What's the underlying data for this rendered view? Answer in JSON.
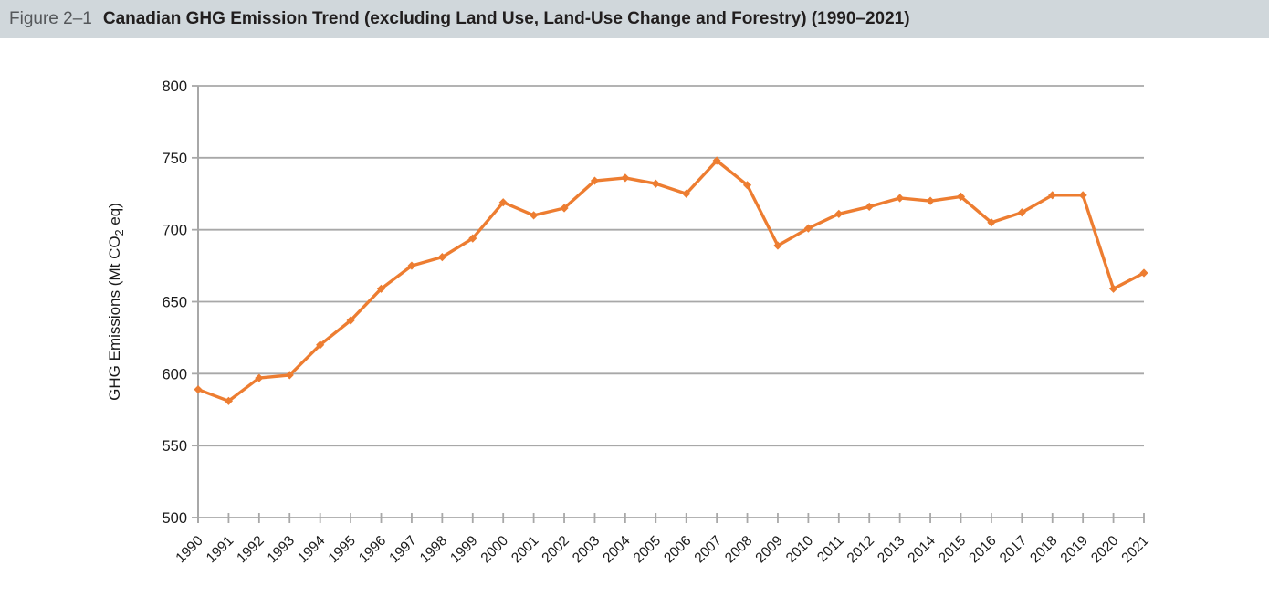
{
  "header": {
    "figure_label": "Figure 2–1",
    "title": "Canadian GHG Emission Trend (excluding Land Use, Land-Use Change and Forestry) (1990–2021)"
  },
  "chart_data": {
    "type": "line",
    "title": "Canadian GHG Emission Trend (excluding Land Use, Land-Use Change and Forestry) (1990–2021)",
    "xlabel": "",
    "ylabel": "GHG Emissions (Mt CO2 eq)",
    "ylabel_parts": {
      "pre": "GHG Emissions (Mt CO",
      "sub": "2",
      "post": " eq)"
    },
    "ylim": [
      500,
      800
    ],
    "ytick_step": 50,
    "yticks": [
      500,
      550,
      600,
      650,
      700,
      750,
      800
    ],
    "grid": true,
    "legend_position": "none",
    "series_name": "GHG Emissions",
    "marker": "diamond",
    "categories": [
      "1990",
      "1991",
      "1992",
      "1993",
      "1994",
      "1995",
      "1996",
      "1997",
      "1998",
      "1999",
      "2000",
      "2001",
      "2002",
      "2003",
      "2004",
      "2005",
      "2006",
      "2007",
      "2008",
      "2009",
      "2010",
      "2011",
      "2012",
      "2013",
      "2014",
      "2015",
      "2016",
      "2017",
      "2018",
      "2019",
      "2020",
      "2021"
    ],
    "values": [
      589,
      581,
      597,
      599,
      620,
      637,
      659,
      675,
      681,
      694,
      719,
      710,
      715,
      734,
      736,
      732,
      725,
      748,
      731,
      689,
      701,
      711,
      716,
      722,
      720,
      723,
      705,
      712,
      724,
      724,
      659,
      670
    ],
    "colors": {
      "line": "#ED7D31",
      "marker": "#ED7D31",
      "gridline": "#a8a8a8",
      "axis": "#a8a8a8",
      "tick_label": "#1a1a1a",
      "header_bg": "#d0d7db"
    }
  }
}
